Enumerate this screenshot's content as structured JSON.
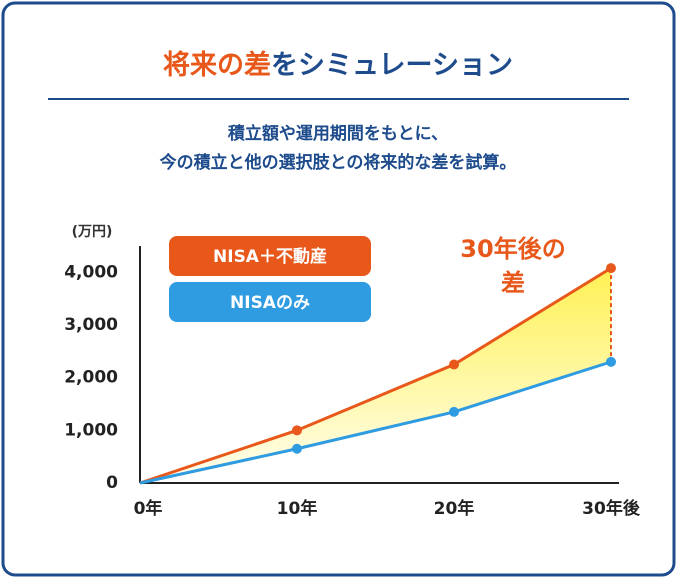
{
  "chart_data": {
    "type": "line",
    "title_parts": [
      {
        "text": "将来の差",
        "color": "#e8581a"
      },
      {
        "text": "をシミュレーション",
        "color": "#1d4b8c"
      }
    ],
    "subtitle_lines": [
      "積立額や運用期間をもとに、",
      "今の積立と他の選択肢との将来的な差を試算。"
    ],
    "y_label": "(万円)",
    "categories": [
      "0年",
      "10年",
      "20年",
      "30年後"
    ],
    "series": [
      {
        "name": "NISA＋不動産",
        "color": "#e8581a",
        "values": [
          0,
          1000,
          2250,
          4080
        ]
      },
      {
        "name": "NISAのみ",
        "color": "#2f9be0",
        "values": [
          0,
          650,
          1350,
          2300
        ]
      }
    ],
    "annotation_lines": [
      "30年後の",
      "差"
    ],
    "ylim": [
      0,
      4500
    ],
    "yticks": [
      0,
      {
        "value": 1000,
        "label": "1,000"
      },
      {
        "value": 2000,
        "label": "2,000"
      },
      {
        "value": 3000,
        "label": "3,000"
      },
      {
        "value": 4000,
        "label": "4,000"
      }
    ],
    "fill_color": "#fff04a"
  }
}
